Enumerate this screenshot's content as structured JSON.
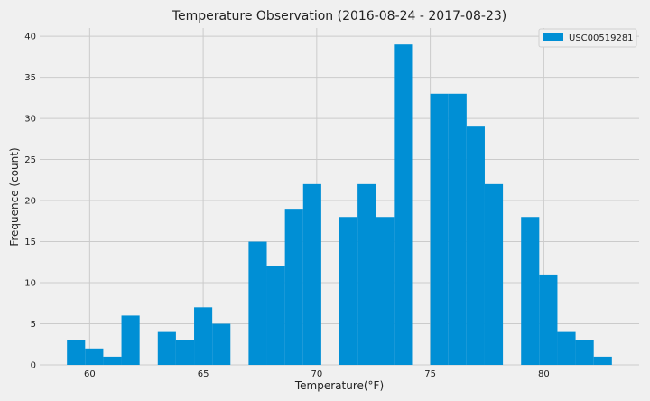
{
  "chart_data": {
    "type": "bar",
    "title": "Temperature Observation (2016-08-24 - 2017-08-23)",
    "xlabel": "Temperature(°F)",
    "ylabel": "Frequence (count)",
    "xlim": [
      57.8,
      84.2
    ],
    "ylim": [
      0,
      41
    ],
    "xticks": [
      60,
      65,
      70,
      75,
      80
    ],
    "yticks": [
      0,
      5,
      10,
      15,
      20,
      25,
      30,
      35,
      40
    ],
    "grid": true,
    "legend_position": "top-right",
    "series": [
      {
        "name": "USC00519281",
        "color": "#008fd5",
        "bin_width": 0.8,
        "bins": [
          {
            "start": 59.0,
            "count": 3
          },
          {
            "start": 59.8,
            "count": 2
          },
          {
            "start": 60.6,
            "count": 1
          },
          {
            "start": 61.4,
            "count": 6
          },
          {
            "start": 63.0,
            "count": 4
          },
          {
            "start": 63.8,
            "count": 3
          },
          {
            "start": 64.6,
            "count": 7
          },
          {
            "start": 65.4,
            "count": 5
          },
          {
            "start": 67.0,
            "count": 15
          },
          {
            "start": 67.8,
            "count": 12
          },
          {
            "start": 68.6,
            "count": 19
          },
          {
            "start": 69.4,
            "count": 22
          },
          {
            "start": 71.0,
            "count": 18
          },
          {
            "start": 71.8,
            "count": 22
          },
          {
            "start": 72.6,
            "count": 18
          },
          {
            "start": 73.4,
            "count": 39
          },
          {
            "start": 75.0,
            "count": 33
          },
          {
            "start": 75.8,
            "count": 33
          },
          {
            "start": 76.6,
            "count": 29
          },
          {
            "start": 77.4,
            "count": 22
          },
          {
            "start": 79.0,
            "count": 18
          },
          {
            "start": 79.8,
            "count": 11
          },
          {
            "start": 80.6,
            "count": 4
          },
          {
            "start": 81.4,
            "count": 3
          },
          {
            "start": 82.2,
            "count": 1
          }
        ]
      }
    ]
  }
}
